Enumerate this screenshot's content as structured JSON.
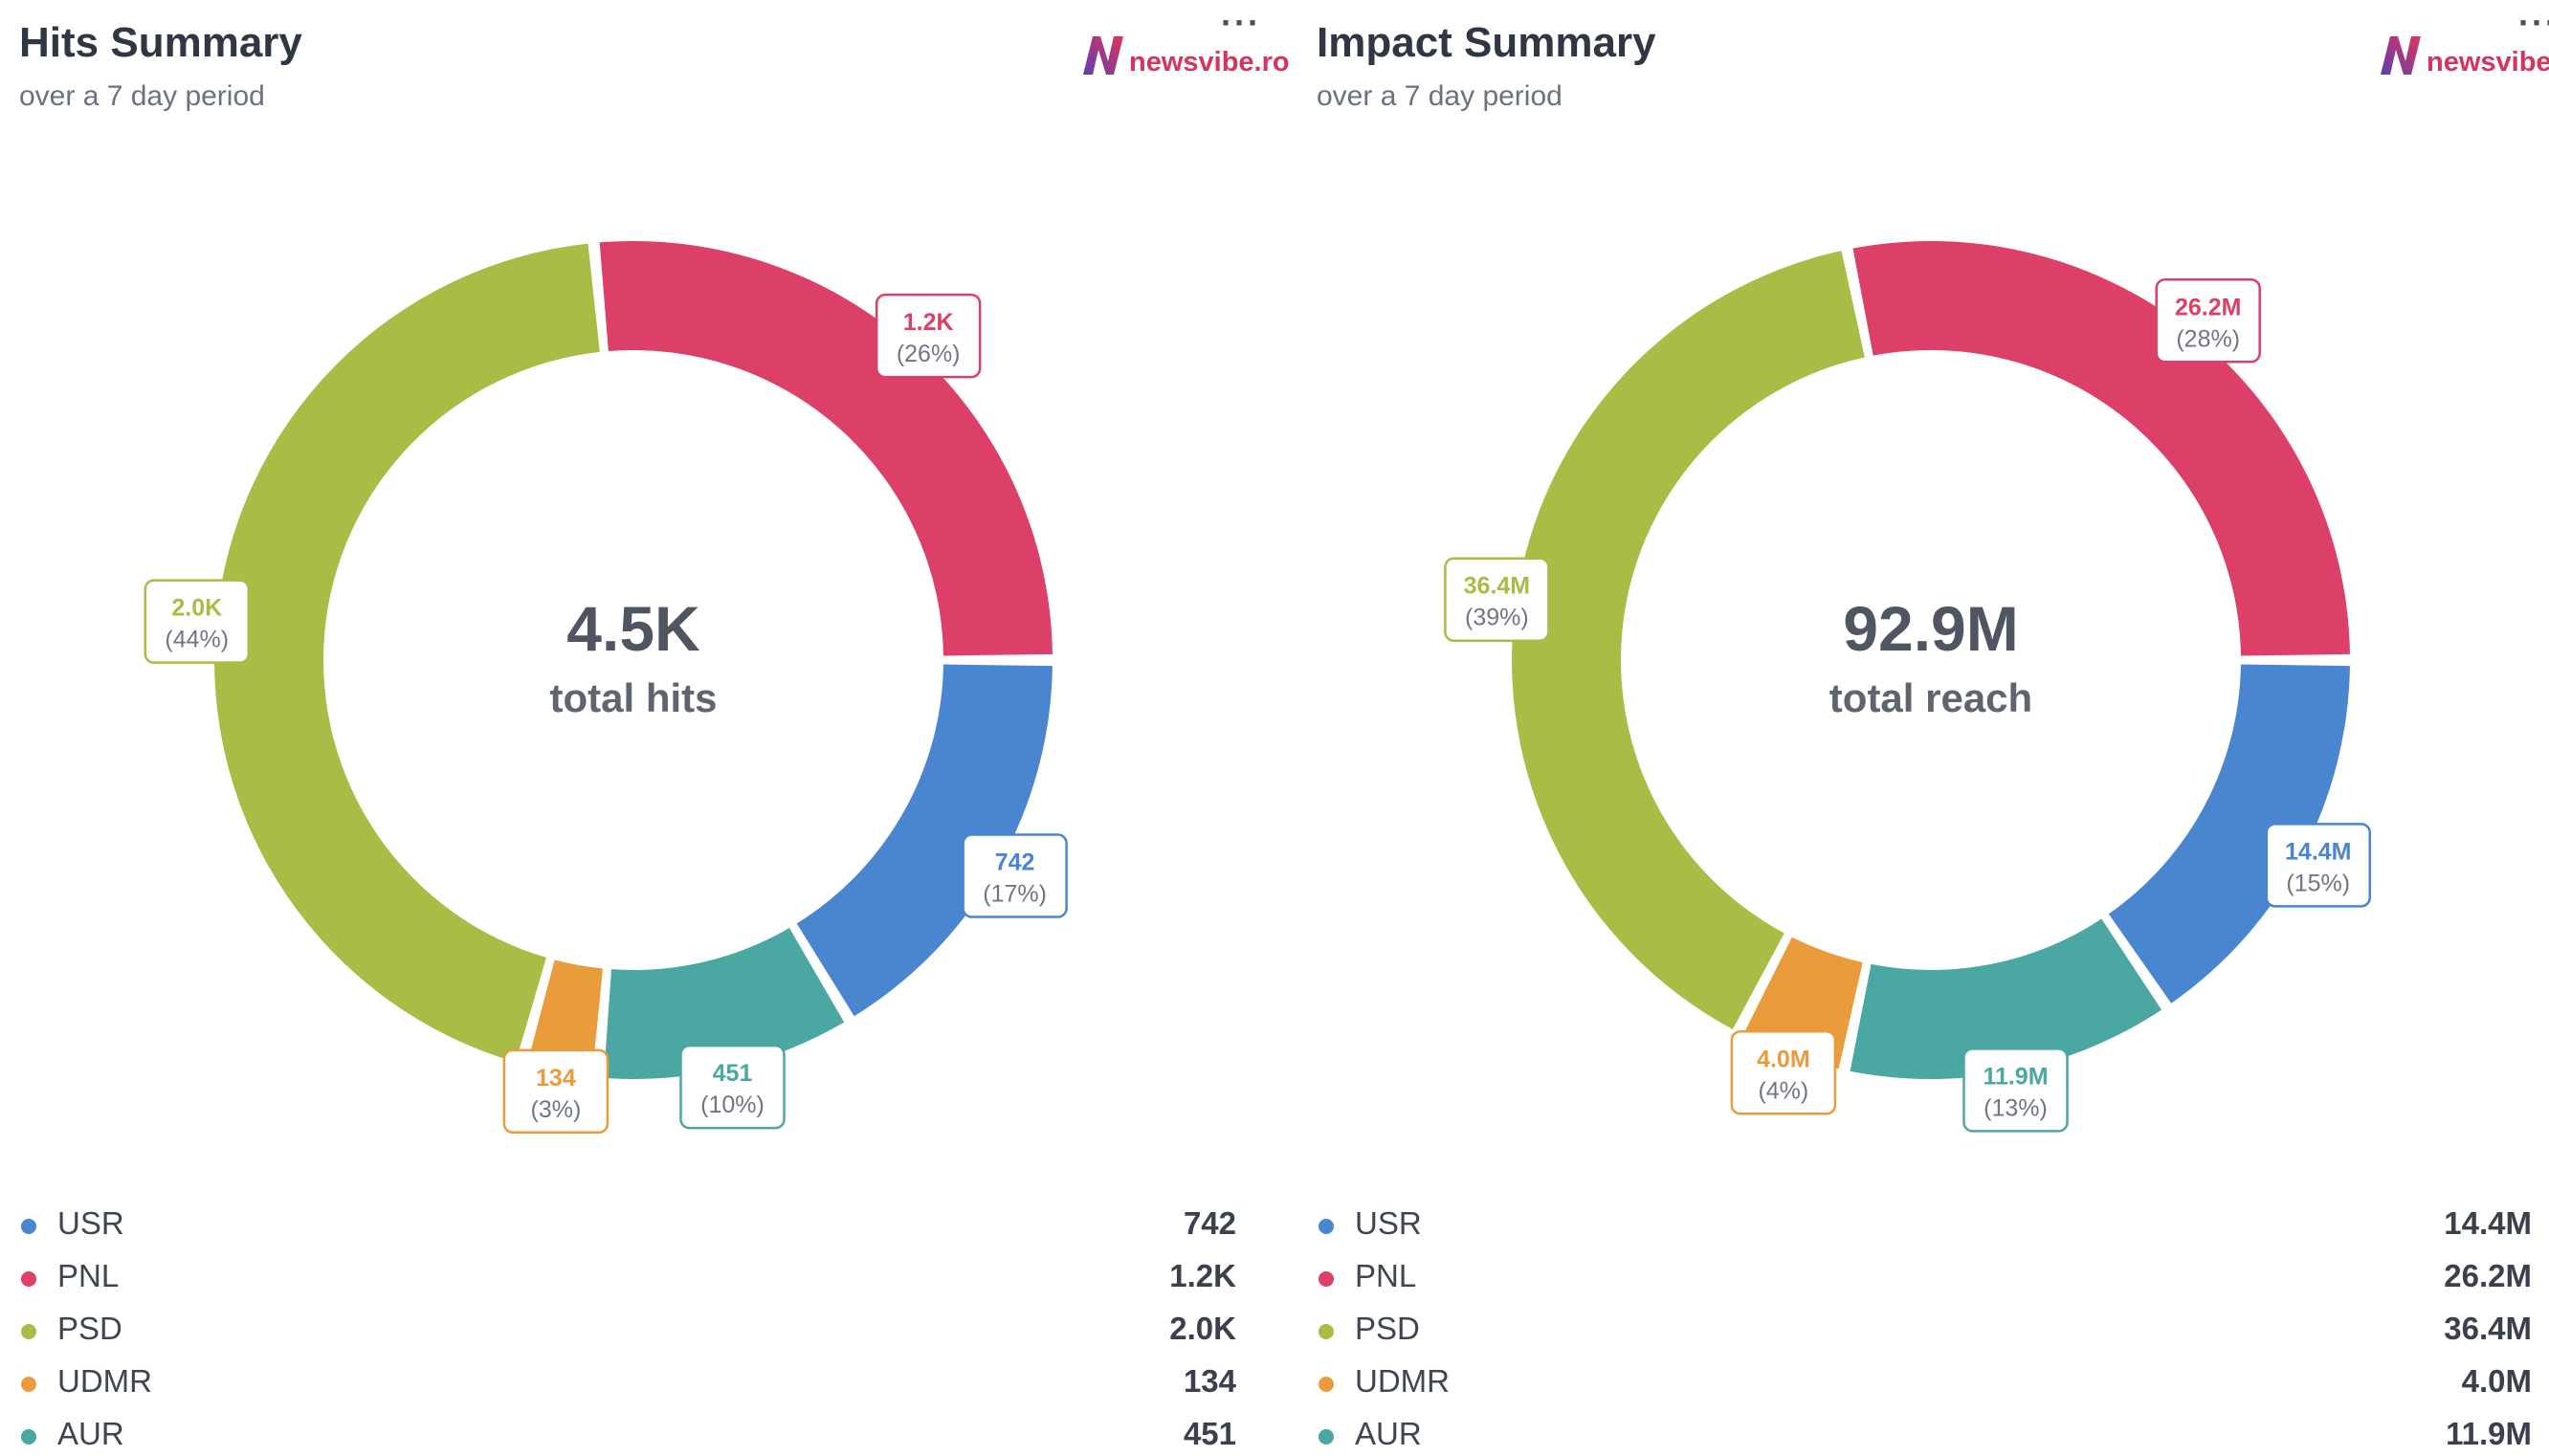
{
  "colors": {
    "USR": "#4a86d0",
    "PNL": "#dc3f67",
    "PSD": "#a8bd45",
    "UDMR": "#ea9c3c",
    "AUR": "#4aa7a2"
  },
  "logo_text": "newsvibe.ro",
  "more_label": "···",
  "chart_data": [
    {
      "type": "pie",
      "title": "Hits Summary",
      "subtitle": "over a 7 day period",
      "center_value": "4.5K",
      "center_label": "total hits",
      "slices": [
        {
          "name": "USR",
          "value": 742,
          "display": "742",
          "percent": 17
        },
        {
          "name": "AUR",
          "value": 451,
          "display": "451",
          "percent": 10
        },
        {
          "name": "UDMR",
          "value": 134,
          "display": "134",
          "percent": 3
        },
        {
          "name": "PSD",
          "value": 2000,
          "display": "2.0K",
          "percent": 44
        },
        {
          "name": "PNL",
          "value": 1200,
          "display": "1.2K",
          "percent": 26
        }
      ],
      "legend": [
        {
          "name": "USR",
          "value": "742"
        },
        {
          "name": "PNL",
          "value": "1.2K"
        },
        {
          "name": "PSD",
          "value": "2.0K"
        },
        {
          "name": "UDMR",
          "value": "134"
        },
        {
          "name": "AUR",
          "value": "451"
        }
      ]
    },
    {
      "type": "pie",
      "title": "Impact Summary",
      "subtitle": "over a 7 day period",
      "center_value": "92.9M",
      "center_label": "total reach",
      "slices": [
        {
          "name": "USR",
          "value": 14.4,
          "display": "14.4M",
          "percent": 15
        },
        {
          "name": "AUR",
          "value": 11.9,
          "display": "11.9M",
          "percent": 13
        },
        {
          "name": "UDMR",
          "value": 4.0,
          "display": "4.0M",
          "percent": 4
        },
        {
          "name": "PSD",
          "value": 36.4,
          "display": "36.4M",
          "percent": 39
        },
        {
          "name": "PNL",
          "value": 26.2,
          "display": "26.2M",
          "percent": 28
        }
      ],
      "legend": [
        {
          "name": "USR",
          "value": "14.4M"
        },
        {
          "name": "PNL",
          "value": "26.2M"
        },
        {
          "name": "PSD",
          "value": "36.4M"
        },
        {
          "name": "UDMR",
          "value": "4.0M"
        },
        {
          "name": "AUR",
          "value": "11.9M"
        }
      ]
    }
  ]
}
